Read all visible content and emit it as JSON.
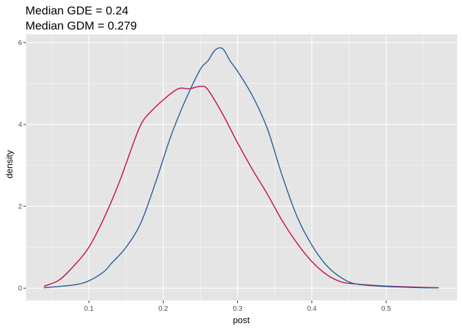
{
  "chart_data": {
    "type": "line",
    "title": [
      "Median GDE = 0.24",
      "Median GDM = 0.279"
    ],
    "xlabel": "post",
    "ylabel": "density",
    "xlim": [
      0.0155,
      0.5955
    ],
    "ylim": [
      -0.3,
      6.2
    ],
    "x_ticks": [
      0.1,
      0.2,
      0.3,
      0.4,
      0.5
    ],
    "y_ticks": [
      0,
      2,
      4,
      6
    ],
    "grid": true,
    "legend": "none",
    "colors": {
      "panel_background": "#e5e5e5",
      "grid": "#ffffff",
      "GDE": "#c4134f",
      "GDM": "#2e5f9b"
    },
    "series": [
      {
        "key": "GDE",
        "color": "#c4134f",
        "x": [
          0.04,
          0.06,
          0.08,
          0.1,
          0.12,
          0.14,
          0.16,
          0.17,
          0.18,
          0.2,
          0.22,
          0.235,
          0.25,
          0.26,
          0.28,
          0.3,
          0.32,
          0.34,
          0.36,
          0.38,
          0.4,
          0.42,
          0.44,
          0.46,
          0.5,
          0.55,
          0.57
        ],
        "y": [
          0.05,
          0.2,
          0.55,
          1.0,
          1.7,
          2.55,
          3.55,
          4.0,
          4.25,
          4.6,
          4.87,
          4.87,
          4.93,
          4.85,
          4.25,
          3.55,
          2.9,
          2.3,
          1.65,
          1.1,
          0.65,
          0.33,
          0.15,
          0.1,
          0.05,
          0.02,
          0.01
        ]
      },
      {
        "key": "GDM",
        "color": "#2e5f9b",
        "x": [
          0.04,
          0.08,
          0.1,
          0.12,
          0.13,
          0.15,
          0.17,
          0.19,
          0.21,
          0.23,
          0.25,
          0.26,
          0.27,
          0.28,
          0.29,
          0.3,
          0.32,
          0.34,
          0.36,
          0.38,
          0.4,
          0.42,
          0.44,
          0.46,
          0.5,
          0.55,
          0.57
        ],
        "y": [
          0.01,
          0.08,
          0.18,
          0.4,
          0.6,
          1.0,
          1.6,
          2.6,
          3.7,
          4.6,
          5.35,
          5.55,
          5.82,
          5.85,
          5.55,
          5.3,
          4.7,
          3.9,
          2.75,
          1.75,
          1.05,
          0.55,
          0.25,
          0.1,
          0.04,
          0.01,
          0.01
        ]
      }
    ]
  }
}
